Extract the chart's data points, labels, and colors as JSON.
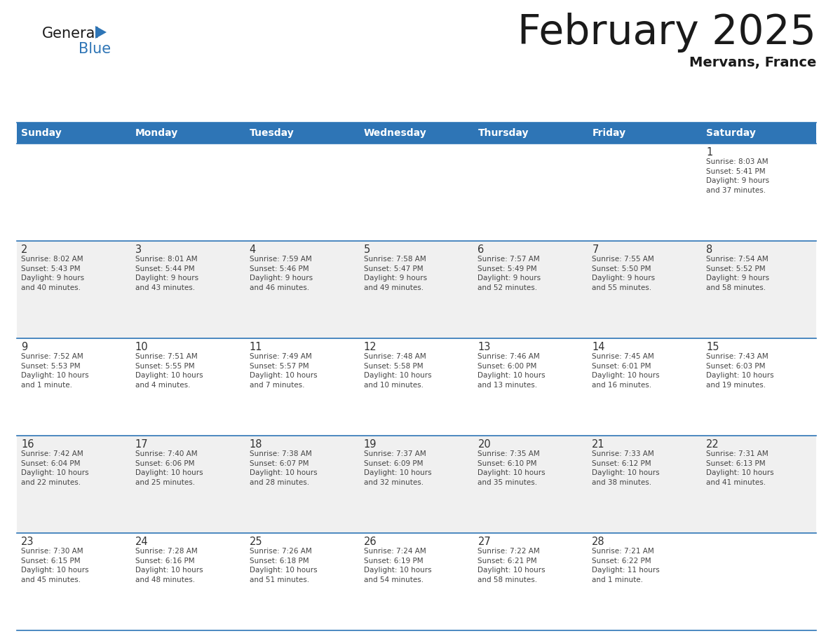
{
  "title": "February 2025",
  "subtitle": "Mervans, France",
  "header_bg_color": "#2E75B6",
  "header_text_color": "#FFFFFF",
  "cell_bg_white": "#FFFFFF",
  "cell_bg_gray": "#F0F0F0",
  "day_headers": [
    "Sunday",
    "Monday",
    "Tuesday",
    "Wednesday",
    "Thursday",
    "Friday",
    "Saturday"
  ],
  "weeks": [
    [
      {
        "day": "",
        "info": ""
      },
      {
        "day": "",
        "info": ""
      },
      {
        "day": "",
        "info": ""
      },
      {
        "day": "",
        "info": ""
      },
      {
        "day": "",
        "info": ""
      },
      {
        "day": "",
        "info": ""
      },
      {
        "day": "1",
        "info": "Sunrise: 8:03 AM\nSunset: 5:41 PM\nDaylight: 9 hours\nand 37 minutes."
      }
    ],
    [
      {
        "day": "2",
        "info": "Sunrise: 8:02 AM\nSunset: 5:43 PM\nDaylight: 9 hours\nand 40 minutes."
      },
      {
        "day": "3",
        "info": "Sunrise: 8:01 AM\nSunset: 5:44 PM\nDaylight: 9 hours\nand 43 minutes."
      },
      {
        "day": "4",
        "info": "Sunrise: 7:59 AM\nSunset: 5:46 PM\nDaylight: 9 hours\nand 46 minutes."
      },
      {
        "day": "5",
        "info": "Sunrise: 7:58 AM\nSunset: 5:47 PM\nDaylight: 9 hours\nand 49 minutes."
      },
      {
        "day": "6",
        "info": "Sunrise: 7:57 AM\nSunset: 5:49 PM\nDaylight: 9 hours\nand 52 minutes."
      },
      {
        "day": "7",
        "info": "Sunrise: 7:55 AM\nSunset: 5:50 PM\nDaylight: 9 hours\nand 55 minutes."
      },
      {
        "day": "8",
        "info": "Sunrise: 7:54 AM\nSunset: 5:52 PM\nDaylight: 9 hours\nand 58 minutes."
      }
    ],
    [
      {
        "day": "9",
        "info": "Sunrise: 7:52 AM\nSunset: 5:53 PM\nDaylight: 10 hours\nand 1 minute."
      },
      {
        "day": "10",
        "info": "Sunrise: 7:51 AM\nSunset: 5:55 PM\nDaylight: 10 hours\nand 4 minutes."
      },
      {
        "day": "11",
        "info": "Sunrise: 7:49 AM\nSunset: 5:57 PM\nDaylight: 10 hours\nand 7 minutes."
      },
      {
        "day": "12",
        "info": "Sunrise: 7:48 AM\nSunset: 5:58 PM\nDaylight: 10 hours\nand 10 minutes."
      },
      {
        "day": "13",
        "info": "Sunrise: 7:46 AM\nSunset: 6:00 PM\nDaylight: 10 hours\nand 13 minutes."
      },
      {
        "day": "14",
        "info": "Sunrise: 7:45 AM\nSunset: 6:01 PM\nDaylight: 10 hours\nand 16 minutes."
      },
      {
        "day": "15",
        "info": "Sunrise: 7:43 AM\nSunset: 6:03 PM\nDaylight: 10 hours\nand 19 minutes."
      }
    ],
    [
      {
        "day": "16",
        "info": "Sunrise: 7:42 AM\nSunset: 6:04 PM\nDaylight: 10 hours\nand 22 minutes."
      },
      {
        "day": "17",
        "info": "Sunrise: 7:40 AM\nSunset: 6:06 PM\nDaylight: 10 hours\nand 25 minutes."
      },
      {
        "day": "18",
        "info": "Sunrise: 7:38 AM\nSunset: 6:07 PM\nDaylight: 10 hours\nand 28 minutes."
      },
      {
        "day": "19",
        "info": "Sunrise: 7:37 AM\nSunset: 6:09 PM\nDaylight: 10 hours\nand 32 minutes."
      },
      {
        "day": "20",
        "info": "Sunrise: 7:35 AM\nSunset: 6:10 PM\nDaylight: 10 hours\nand 35 minutes."
      },
      {
        "day": "21",
        "info": "Sunrise: 7:33 AM\nSunset: 6:12 PM\nDaylight: 10 hours\nand 38 minutes."
      },
      {
        "day": "22",
        "info": "Sunrise: 7:31 AM\nSunset: 6:13 PM\nDaylight: 10 hours\nand 41 minutes."
      }
    ],
    [
      {
        "day": "23",
        "info": "Sunrise: 7:30 AM\nSunset: 6:15 PM\nDaylight: 10 hours\nand 45 minutes."
      },
      {
        "day": "24",
        "info": "Sunrise: 7:28 AM\nSunset: 6:16 PM\nDaylight: 10 hours\nand 48 minutes."
      },
      {
        "day": "25",
        "info": "Sunrise: 7:26 AM\nSunset: 6:18 PM\nDaylight: 10 hours\nand 51 minutes."
      },
      {
        "day": "26",
        "info": "Sunrise: 7:24 AM\nSunset: 6:19 PM\nDaylight: 10 hours\nand 54 minutes."
      },
      {
        "day": "27",
        "info": "Sunrise: 7:22 AM\nSunset: 6:21 PM\nDaylight: 10 hours\nand 58 minutes."
      },
      {
        "day": "28",
        "info": "Sunrise: 7:21 AM\nSunset: 6:22 PM\nDaylight: 11 hours\nand 1 minute."
      },
      {
        "day": "",
        "info": ""
      }
    ]
  ],
  "logo_color_general": "#1a1a1a",
  "logo_color_blue": "#2E75B6",
  "logo_triangle_color": "#2E75B6",
  "divider_color": "#2E75B6",
  "date_color": "#333333",
  "info_color": "#444444",
  "background_color": "#FFFFFF",
  "title_color": "#1a1a1a",
  "subtitle_color": "#1a1a1a"
}
